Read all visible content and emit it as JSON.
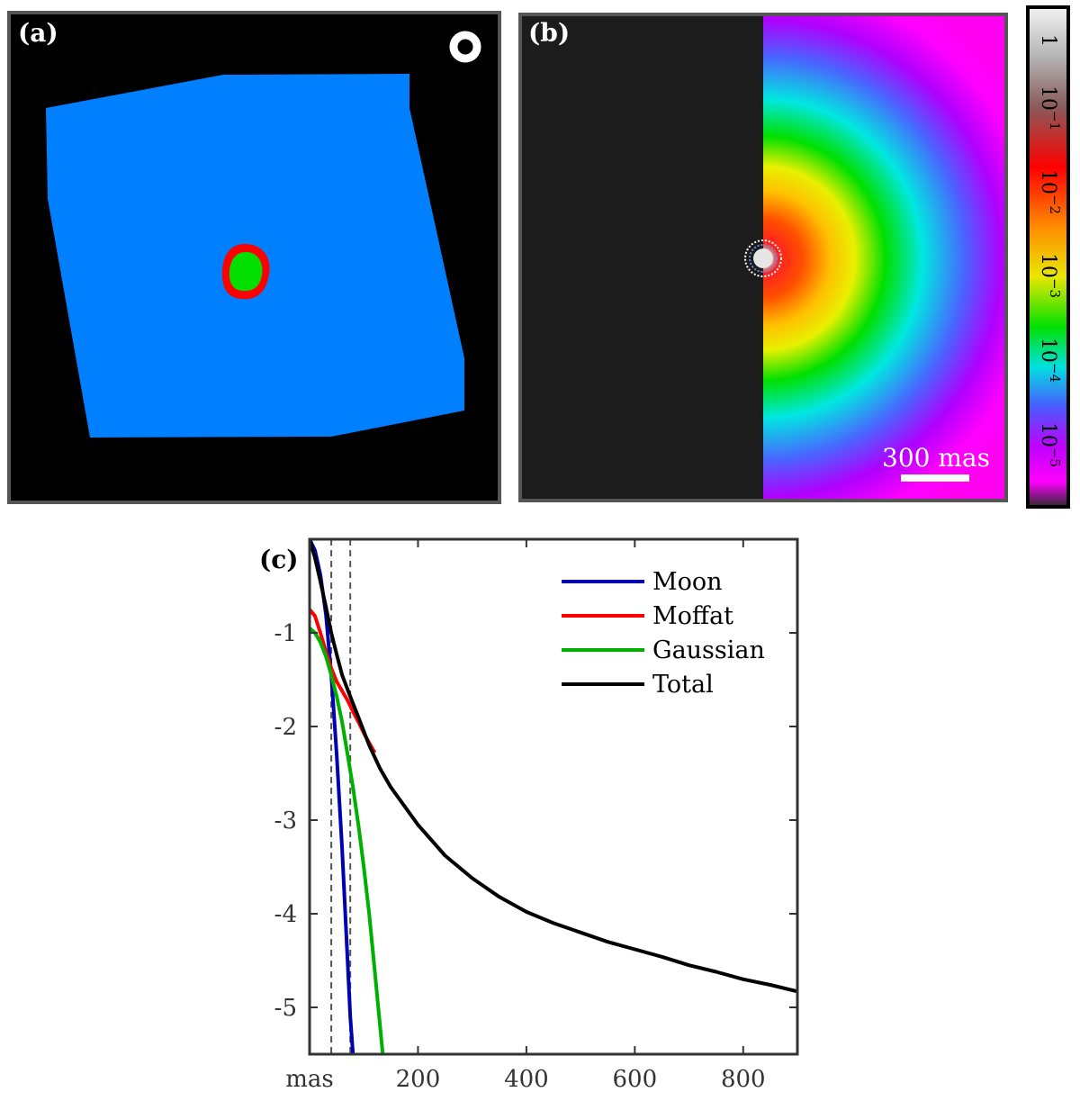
{
  "panel_a": {
    "label": "(a)",
    "regions": {
      "background": "#000000",
      "outer": "#0080ff",
      "ring": "#ff0000",
      "core": "#00e000",
      "marker": "#ffffff"
    }
  },
  "panel_b": {
    "label": "(b)",
    "scalebar_label": "300 mas",
    "colorbar_ticks": [
      "1",
      "10",
      "10",
      "10",
      "10",
      "10"
    ],
    "colorbar_exponents": [
      "",
      "−1",
      "−2",
      "−3",
      "−4",
      "−5"
    ],
    "colors": {
      "left_half": "#1c1c1c",
      "scalebar": "#ffffff"
    }
  },
  "chart_data": {
    "type": "line",
    "panel_label": "(c)",
    "xlabel": "",
    "ylabel": "",
    "xlim": [
      0,
      900
    ],
    "ylim": [
      -5.5,
      0
    ],
    "xticks": [
      200,
      400,
      600,
      800
    ],
    "xtick_labels": [
      "200",
      "400",
      "600",
      "800"
    ],
    "x_origin_label": "mas",
    "yticks": [
      -1,
      -2,
      -3,
      -4,
      -5
    ],
    "ytick_labels": [
      "-1",
      "-2",
      "-3",
      "-4",
      "-5"
    ],
    "vlines": [
      40,
      75
    ],
    "legend_position": "top-right",
    "series": [
      {
        "name": "Moon",
        "color": "#0000b0",
        "x": [
          0,
          10,
          20,
          30,
          40,
          50,
          60,
          70,
          75,
          80
        ],
        "y": [
          0,
          -0.12,
          -0.38,
          -0.8,
          -1.45,
          -2.3,
          -3.3,
          -4.5,
          -5.1,
          -5.5
        ]
      },
      {
        "name": "Moffat",
        "color": "#ff0000",
        "x": [
          0,
          10,
          20,
          30,
          40,
          50,
          60,
          70,
          80,
          90,
          100,
          120
        ],
        "y": [
          -0.75,
          -0.82,
          -1.0,
          -1.2,
          -1.38,
          -1.52,
          -1.62,
          -1.72,
          -1.84,
          -1.95,
          -2.07,
          -2.28
        ]
      },
      {
        "name": "Gaussian",
        "color": "#00b000",
        "x": [
          0,
          10,
          20,
          30,
          40,
          50,
          60,
          70,
          80,
          90,
          100,
          110,
          120,
          130,
          135
        ],
        "y": [
          -0.95,
          -1.0,
          -1.1,
          -1.25,
          -1.45,
          -1.68,
          -1.95,
          -2.3,
          -2.65,
          -3.05,
          -3.5,
          -4.0,
          -4.6,
          -5.2,
          -5.5
        ]
      },
      {
        "name": "Total",
        "color": "#000000",
        "x": [
          0,
          10,
          20,
          30,
          40,
          50,
          60,
          75,
          90,
          110,
          130,
          150,
          175,
          200,
          250,
          300,
          350,
          400,
          450,
          500,
          550,
          600,
          650,
          700,
          750,
          800,
          850,
          900
        ],
        "y": [
          0,
          -0.2,
          -0.45,
          -0.72,
          -1.0,
          -1.23,
          -1.45,
          -1.68,
          -1.9,
          -2.2,
          -2.45,
          -2.65,
          -2.85,
          -3.05,
          -3.38,
          -3.62,
          -3.82,
          -3.98,
          -4.1,
          -4.2,
          -4.3,
          -4.38,
          -4.46,
          -4.55,
          -4.62,
          -4.7,
          -4.76,
          -4.83
        ]
      }
    ]
  }
}
